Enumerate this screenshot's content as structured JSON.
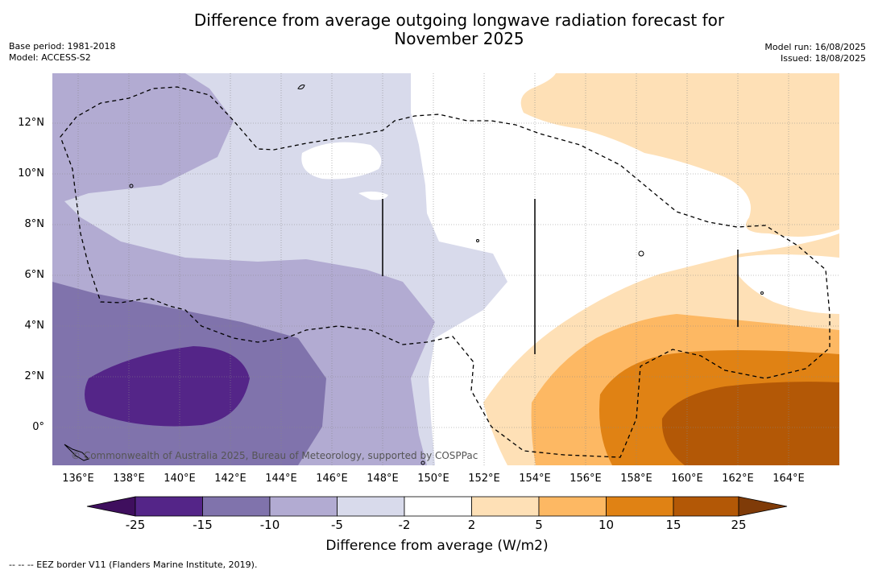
{
  "header": {
    "title_line1": "Difference from average outgoing longwave radiation forecast for",
    "title_line2": "November 2025",
    "base_period": "Base period: 1981-2018",
    "model": "Model: ACCESS-S2",
    "model_run": "Model run: 16/08/2025",
    "issued": "Issued: 18/08/2025"
  },
  "map": {
    "lat_labels": [
      "12°N",
      "10°N",
      "8°N",
      "6°N",
      "4°N",
      "2°N",
      "0°"
    ],
    "lon_labels": [
      "136°E",
      "138°E",
      "140°E",
      "142°E",
      "144°E",
      "146°E",
      "148°E",
      "150°E",
      "152°E",
      "154°E",
      "156°E",
      "158°E",
      "160°E",
      "162°E",
      "164°E"
    ],
    "copyright": "© Commonwealth of Australia 2025, Bureau of Meteorology, supported by COSPPac"
  },
  "colorbar": {
    "ticks": [
      "-25",
      "-15",
      "-10",
      "-5",
      "-2",
      "2",
      "5",
      "10",
      "15",
      "25"
    ],
    "colors": [
      "#3f0f5e",
      "#542588",
      "#8073ac",
      "#b2abd2",
      "#d8daeb",
      "#ffffff",
      "#fee0b6",
      "#fdb863",
      "#e08214",
      "#b35806",
      "#7f3b08"
    ],
    "title": "Difference from average (W/m2)"
  },
  "footnote": "-- -- -- EEZ border V11 (Flanders Marine Institute, 2019)."
}
